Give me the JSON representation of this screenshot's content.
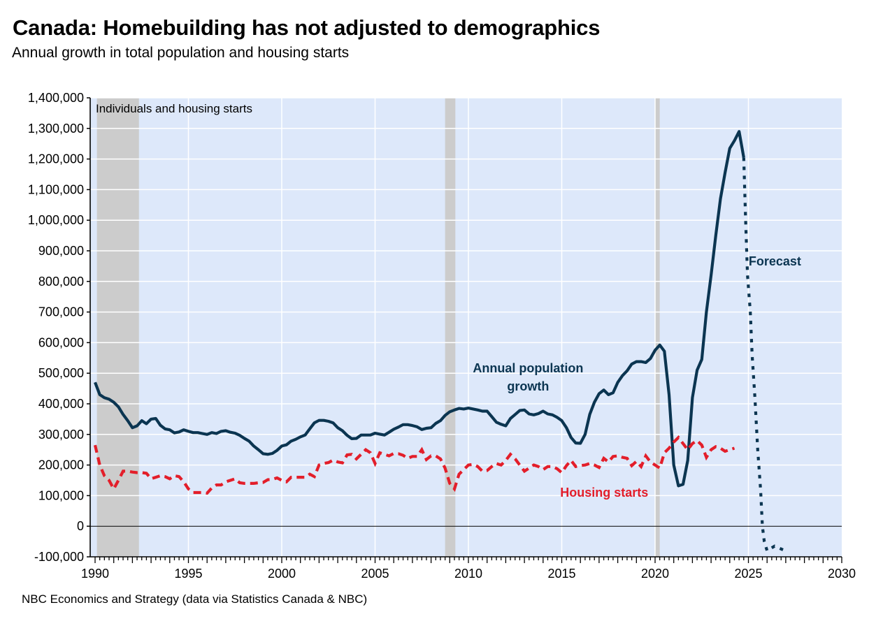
{
  "header": {
    "title": "Canada: Homebuilding has not adjusted to demographics",
    "subtitle": "Annual growth in total population and housing starts"
  },
  "footer": {
    "source": "NBC Economics and Strategy (data via Statistics Canada & NBC)"
  },
  "colors": {
    "plot_background": "#dde8fa",
    "recession_band": "#cccccc",
    "population": "#0b3551",
    "housing": "#e31e2a",
    "gridline": "#ffffff"
  },
  "chart_data": {
    "type": "line",
    "title": "Canada: Homebuilding has not adjusted to demographics",
    "subtitle": "Annual growth in total population and housing starts",
    "ylabel": "Individuals and housing starts",
    "xlabel": "",
    "xlim": [
      1990,
      2030
    ],
    "ylim": [
      -100000,
      1400000
    ],
    "grid": true,
    "x_ticks": [
      "1990",
      "1995",
      "2000",
      "2005",
      "2010",
      "2015",
      "2020",
      "2025",
      "2030"
    ],
    "y_ticks": [
      "1,400,000",
      "1,300,000",
      "1,200,000",
      "1,100,000",
      "1,000,000",
      "900,000",
      "800,000",
      "700,000",
      "600,000",
      "500,000",
      "400,000",
      "300,000",
      "200,000",
      "100,000",
      "0",
      "-100,000"
    ],
    "y_tick_values": [
      1400000,
      1300000,
      1200000,
      1100000,
      1000000,
      900000,
      800000,
      700000,
      600000,
      500000,
      400000,
      300000,
      200000,
      100000,
      0,
      -100000
    ],
    "x_tick_values": [
      1990,
      1995,
      2000,
      2005,
      2010,
      2015,
      2020,
      2025,
      2030
    ],
    "recessions": [
      [
        1990.1,
        1992.35
      ],
      [
        2008.75,
        2009.3
      ],
      [
        2020.0,
        2020.25
      ]
    ],
    "annotations": [
      {
        "text": "Individuals and housing starts",
        "position": "top-left"
      },
      {
        "text": "Annual population growth",
        "lines": [
          "Annual population",
          "growth"
        ],
        "series": "population",
        "x": 2012.0,
        "y": 500000
      },
      {
        "text": "Housing starts",
        "series": "housing",
        "x": 2016.9,
        "y": 110000
      },
      {
        "text": "Forecast",
        "series": "population_forecast",
        "x": 2026.7,
        "y": 660000
      }
    ],
    "series": [
      {
        "name": "Annual population growth",
        "style": "solid",
        "x": [
          1990.0,
          1990.25,
          1990.5,
          1990.75,
          1991.0,
          1991.25,
          1991.5,
          1991.75,
          1992.0,
          1992.25,
          1992.5,
          1992.75,
          1993.0,
          1993.25,
          1993.5,
          1993.75,
          1994.0,
          1994.25,
          1994.5,
          1994.75,
          1995.0,
          1995.25,
          1995.5,
          1995.75,
          1996.0,
          1996.25,
          1996.5,
          1996.75,
          1997.0,
          1997.25,
          1997.5,
          1997.75,
          1998.0,
          1998.25,
          1998.5,
          1998.75,
          1999.0,
          1999.25,
          1999.5,
          1999.75,
          2000.0,
          2000.25,
          2000.5,
          2000.75,
          2001.0,
          2001.25,
          2001.5,
          2001.75,
          2002.0,
          2002.25,
          2002.5,
          2002.75,
          2003.0,
          2003.25,
          2003.5,
          2003.75,
          2004.0,
          2004.25,
          2004.5,
          2004.75,
          2005.0,
          2005.25,
          2005.5,
          2005.75,
          2006.0,
          2006.25,
          2006.5,
          2006.75,
          2007.0,
          2007.25,
          2007.5,
          2007.75,
          2008.0,
          2008.25,
          2008.5,
          2008.75,
          2009.0,
          2009.25,
          2009.5,
          2009.75,
          2010.0,
          2010.25,
          2010.5,
          2010.75,
          2011.0,
          2011.25,
          2011.5,
          2011.75,
          2012.0,
          2012.25,
          2012.5,
          2012.75,
          2013.0,
          2013.25,
          2013.5,
          2013.75,
          2014.0,
          2014.25,
          2014.5,
          2014.75,
          2015.0,
          2015.25,
          2015.5,
          2015.75,
          2016.0,
          2016.25,
          2016.5,
          2016.75,
          2017.0,
          2017.25,
          2017.5,
          2017.75,
          2018.0,
          2018.25,
          2018.5,
          2018.75,
          2019.0,
          2019.25,
          2019.5,
          2019.75,
          2020.0,
          2020.25,
          2020.5,
          2020.75,
          2021.0,
          2021.25,
          2021.5,
          2021.75,
          2022.0,
          2022.25,
          2022.5,
          2022.75,
          2023.0,
          2023.25,
          2023.5,
          2023.75,
          2024.0,
          2024.25,
          2024.5,
          2024.75
        ],
        "values": [
          470000,
          430000,
          420000,
          415000,
          405000,
          390000,
          365000,
          345000,
          322000,
          328000,
          345000,
          335000,
          350000,
          352000,
          330000,
          318000,
          315000,
          305000,
          308000,
          315000,
          310000,
          306000,
          306000,
          303000,
          300000,
          306000,
          303000,
          310000,
          312000,
          307000,
          304000,
          297000,
          287000,
          278000,
          262000,
          250000,
          237000,
          235000,
          238000,
          248000,
          262000,
          266000,
          278000,
          284000,
          292000,
          298000,
          318000,
          338000,
          346000,
          346000,
          343000,
          338000,
          322000,
          312000,
          297000,
          286000,
          287000,
          298000,
          298000,
          298000,
          304000,
          301000,
          298000,
          307000,
          317000,
          324000,
          332000,
          332000,
          329000,
          325000,
          316000,
          320000,
          322000,
          336000,
          345000,
          362000,
          374000,
          380000,
          385000,
          383000,
          386000,
          383000,
          380000,
          376000,
          376000,
          358000,
          340000,
          333000,
          328000,
          352000,
          365000,
          378000,
          380000,
          367000,
          364000,
          368000,
          376000,
          367000,
          364000,
          356000,
          345000,
          322000,
          290000,
          272000,
          271000,
          300000,
          365000,
          405000,
          433000,
          445000,
          430000,
          436000,
          470000,
          492000,
          508000,
          530000,
          538000,
          538000,
          535000,
          548000,
          575000,
          592000,
          572000,
          430000,
          200000,
          132000,
          137000,
          215000,
          420000,
          510000,
          545000,
          700000,
          820000,
          950000,
          1070000,
          1155000,
          1235000,
          1260000,
          1290000,
          1205000
        ]
      },
      {
        "name": "Annual population growth (forecast)",
        "style": "dotted",
        "x": [
          2024.75,
          2024.85,
          2024.95,
          2025.1,
          2025.2,
          2025.35,
          2025.5,
          2025.65,
          2025.75,
          2025.85,
          2026.0,
          2026.4,
          2026.9
        ],
        "values": [
          1205000,
          1000000,
          820000,
          700000,
          560000,
          420000,
          250000,
          120000,
          0,
          -50000,
          -80000,
          -65000,
          -78000
        ]
      },
      {
        "name": "Housing starts",
        "style": "dashed",
        "x": [
          1990.0,
          1990.25,
          1990.5,
          1990.75,
          1991.0,
          1991.25,
          1991.5,
          1991.75,
          1992.0,
          1992.25,
          1992.5,
          1992.75,
          1993.0,
          1993.25,
          1993.5,
          1993.75,
          1994.0,
          1994.25,
          1994.5,
          1994.75,
          1995.0,
          1995.25,
          1995.5,
          1995.75,
          1996.0,
          1996.25,
          1996.5,
          1996.75,
          1997.0,
          1997.25,
          1997.5,
          1997.75,
          1998.0,
          1998.25,
          1998.5,
          1998.75,
          1999.0,
          1999.25,
          1999.5,
          1999.75,
          2000.0,
          2000.25,
          2000.5,
          2000.75,
          2001.0,
          2001.25,
          2001.5,
          2001.75,
          2002.0,
          2002.25,
          2002.5,
          2002.75,
          2003.0,
          2003.25,
          2003.5,
          2003.75,
          2004.0,
          2004.25,
          2004.5,
          2004.75,
          2005.0,
          2005.25,
          2005.5,
          2005.75,
          2006.0,
          2006.25,
          2006.5,
          2006.75,
          2007.0,
          2007.25,
          2007.5,
          2007.75,
          2008.0,
          2008.25,
          2008.5,
          2008.75,
          2009.0,
          2009.25,
          2009.5,
          2009.75,
          2010.0,
          2010.25,
          2010.5,
          2010.75,
          2011.0,
          2011.25,
          2011.5,
          2011.75,
          2012.0,
          2012.25,
          2012.5,
          2012.75,
          2013.0,
          2013.25,
          2013.5,
          2013.75,
          2014.0,
          2014.25,
          2014.5,
          2014.75,
          2015.0,
          2015.25,
          2015.5,
          2015.75,
          2016.0,
          2016.25,
          2016.5,
          2016.75,
          2017.0,
          2017.25,
          2017.5,
          2017.75,
          2018.0,
          2018.25,
          2018.5,
          2018.75,
          2019.0,
          2019.25,
          2019.5,
          2019.75,
          2020.0,
          2020.25,
          2020.5,
          2020.75,
          2021.0,
          2021.25,
          2021.5,
          2021.75,
          2022.0,
          2022.25,
          2022.5,
          2022.75,
          2023.0,
          2023.25,
          2023.5,
          2023.75,
          2024.0,
          2024.25
        ],
        "values": [
          265000,
          200000,
          165000,
          150000,
          122000,
          150000,
          180000,
          180000,
          177000,
          175000,
          175000,
          173000,
          155000,
          160000,
          165000,
          162000,
          155000,
          165000,
          162000,
          145000,
          122000,
          110000,
          110000,
          110000,
          108000,
          125000,
          135000,
          135000,
          145000,
          150000,
          155000,
          142000,
          140000,
          140000,
          140000,
          142000,
          143000,
          152000,
          153000,
          158000,
          150000,
          145000,
          160000,
          160000,
          160000,
          160000,
          170000,
          162000,
          200000,
          205000,
          208000,
          216000,
          210000,
          207000,
          233000,
          235000,
          220000,
          235000,
          250000,
          240000,
          205000,
          240000,
          235000,
          230000,
          238000,
          237000,
          232000,
          222000,
          228000,
          228000,
          250000,
          218000,
          230000,
          230000,
          220000,
          190000,
          140000,
          122000,
          170000,
          185000,
          200000,
          202000,
          195000,
          180000,
          182000,
          195000,
          205000,
          200000,
          215000,
          235000,
          220000,
          200000,
          180000,
          190000,
          200000,
          195000,
          185000,
          195000,
          195000,
          188000,
          175000,
          198000,
          215000,
          195000,
          198000,
          200000,
          205000,
          200000,
          192000,
          222000,
          210000,
          228000,
          230000,
          225000,
          222000,
          198000,
          212000,
          195000,
          230000,
          210000,
          200000,
          190000,
          240000,
          255000,
          275000,
          290000,
          270000,
          250000,
          270000,
          280000,
          265000,
          225000,
          250000,
          260000,
          255000,
          245000,
          250000,
          255000
        ]
      }
    ]
  }
}
